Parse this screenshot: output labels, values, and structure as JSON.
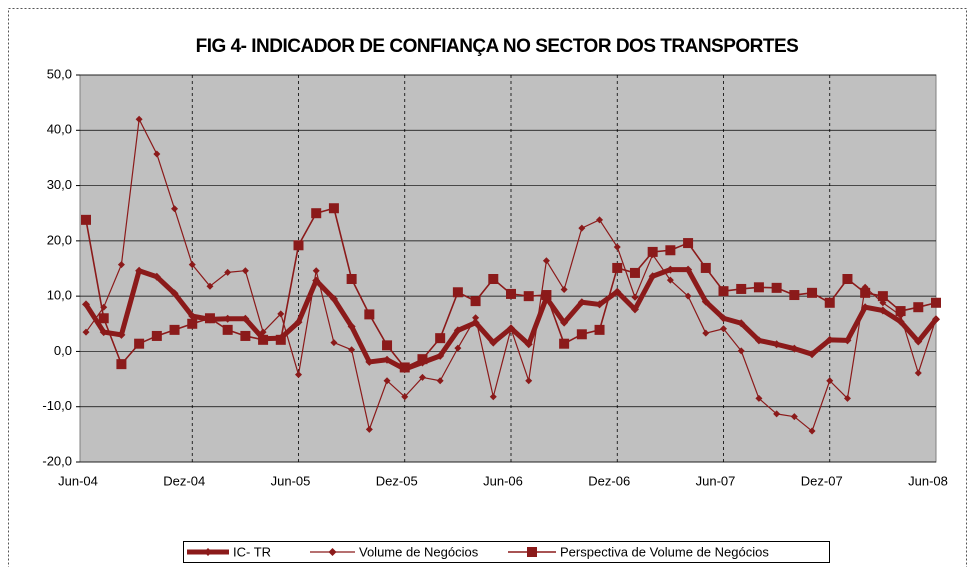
{
  "chart_data": {
    "type": "line",
    "title": "FIG 4- INDICADOR DE CONFIANÇA NO SECTOR DOS TRANSPORTES",
    "categories": [
      "Jun-04",
      null,
      null,
      null,
      null,
      null,
      "Dez-04",
      null,
      null,
      null,
      null,
      null,
      "Jun-05",
      null,
      null,
      null,
      null,
      null,
      "Dez-05",
      null,
      null,
      null,
      null,
      null,
      "Jun-06",
      null,
      null,
      null,
      null,
      null,
      "Dez-06",
      null,
      null,
      null,
      null,
      null,
      "Jun-07",
      null,
      null,
      null,
      null,
      null,
      "Dez-07",
      null,
      null,
      null,
      null,
      null,
      "Jun-08"
    ],
    "ylim": [
      -20,
      50
    ],
    "yticks": [
      {
        "value": -20,
        "label": "-20,0"
      },
      {
        "value": -10,
        "label": "-10,0"
      },
      {
        "value": 0,
        "label": "0,0"
      },
      {
        "value": 10,
        "label": "10,0"
      },
      {
        "value": 20,
        "label": "20,0"
      },
      {
        "value": 30,
        "label": "30,0"
      },
      {
        "value": 40,
        "label": "40,0"
      },
      {
        "value": 50,
        "label": "50,0"
      }
    ],
    "grid": true,
    "legend": "bottom",
    "series": [
      {
        "name": "IC- TR",
        "color": "#8b1a1a",
        "marker": "diamond",
        "values": [
          8.5,
          3.5,
          3.0,
          14.6,
          13.5,
          10.5,
          6.4,
          5.8,
          5.9,
          5.9,
          2.3,
          2.4,
          5.3,
          12.8,
          9.5,
          4.5,
          -1.9,
          -1.5,
          -3.2,
          -2.0,
          -0.8,
          3.8,
          5.2,
          1.6,
          4.2,
          1.3,
          9.7,
          5.2,
          8.9,
          8.5,
          10.8,
          7.6,
          13.6,
          14.8,
          14.8,
          9.0,
          6.0,
          5.1,
          2.0,
          1.3,
          0.5,
          -0.5,
          2.1,
          2.0,
          8.0,
          7.4,
          5.4,
          1.8,
          5.8
        ]
      },
      {
        "name": "Volume de Negócios",
        "color": "#8b1a1a",
        "marker": "diamond",
        "values": [
          3.5,
          8.0,
          15.7,
          42.0,
          35.7,
          25.8,
          15.7,
          11.8,
          14.3,
          14.6,
          3.5,
          6.8,
          -4.2,
          14.6,
          1.6,
          0.3,
          -14.1,
          -5.3,
          -8.2,
          -4.7,
          -5.3,
          0.6,
          6.1,
          -8.2,
          4.1,
          -5.3,
          16.4,
          11.2,
          22.3,
          23.8,
          18.9,
          9.8,
          17.5,
          12.9,
          10.0,
          3.3,
          4.1,
          0.1,
          -8.5,
          -11.3,
          -11.8,
          -14.4,
          -5.3,
          -8.5,
          11.6,
          8.8,
          6.5,
          -3.9,
          5.9
        ]
      },
      {
        "name": "Perspectiva de Volume de Negócios",
        "color": "#8b1a1a",
        "marker": "square",
        "values": [
          23.8,
          6.0,
          -2.3,
          1.4,
          2.8,
          3.9,
          5.0,
          6.0,
          3.9,
          2.8,
          2.1,
          2.1,
          19.2,
          25.0,
          25.9,
          13.1,
          6.7,
          1.1,
          -2.9,
          -1.4,
          2.4,
          10.7,
          9.1,
          13.1,
          10.4,
          10.0,
          10.2,
          1.4,
          3.1,
          3.9,
          15.1,
          14.2,
          18.0,
          18.3,
          19.6,
          15.1,
          10.9,
          11.3,
          11.6,
          11.5,
          10.2,
          10.6,
          8.8,
          13.1,
          10.6,
          10.0,
          7.3,
          8.0,
          8.8
        ]
      }
    ]
  }
}
